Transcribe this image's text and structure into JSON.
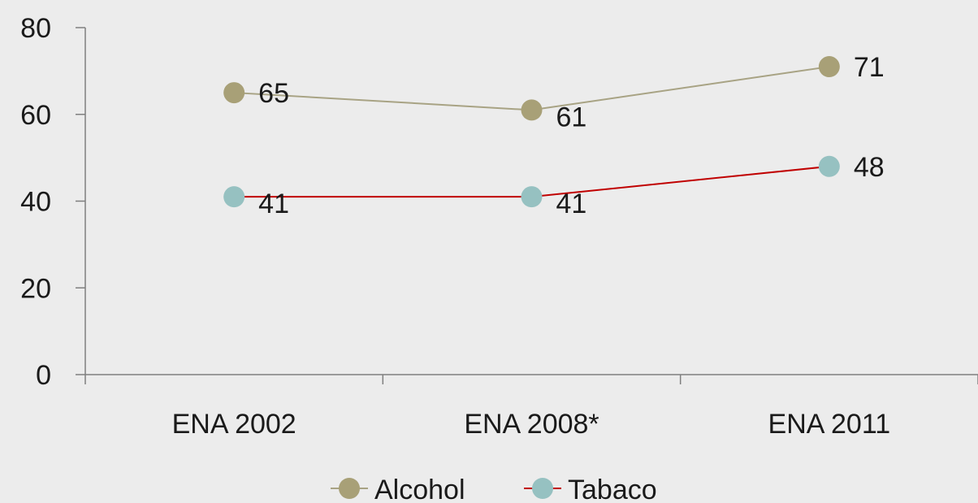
{
  "chart_data": {
    "type": "line",
    "categories": [
      "ENA 2002",
      "ENA 2008*",
      "ENA 2011"
    ],
    "series": [
      {
        "name": "Alcohol",
        "values": [
          65,
          61,
          71
        ],
        "data_labels": [
          "65",
          "61",
          "71"
        ],
        "line_color": "#a8a384",
        "marker_color": "#a8a077"
      },
      {
        "name": "Tabaco",
        "values": [
          41,
          41,
          48
        ],
        "data_labels": [
          "41",
          "41",
          "48"
        ],
        "line_color": "#c00000",
        "marker_color": "#96c1c1"
      }
    ],
    "ylim": [
      0,
      80
    ],
    "yticks": [
      0,
      20,
      40,
      60,
      80
    ],
    "ytick_labels": [
      "0",
      "20",
      "40",
      "60",
      "80"
    ],
    "title": "",
    "xlabel": "",
    "ylabel": "",
    "grid": false,
    "legend_position": "bottom",
    "axis_color": "#7f7f7f"
  }
}
